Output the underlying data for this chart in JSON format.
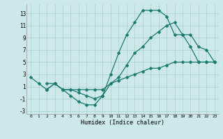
{
  "xlabel": "Humidex (Indice chaleur)",
  "bg_color": "#cce8e8",
  "grid_color": "#aacfcf",
  "line_color": "#1a7a6e",
  "xlim": [
    -0.5,
    23.5
  ],
  "ylim": [
    -3.5,
    14.5
  ],
  "xticks": [
    0,
    1,
    2,
    3,
    4,
    5,
    6,
    7,
    8,
    9,
    10,
    11,
    12,
    13,
    14,
    15,
    16,
    17,
    18,
    19,
    20,
    21,
    22,
    23
  ],
  "yticks": [
    -3,
    -1,
    1,
    3,
    5,
    7,
    9,
    11,
    13
  ],
  "line1_x": [
    0,
    1,
    2,
    3,
    4,
    5,
    6,
    7,
    8,
    9,
    10,
    11,
    12,
    13,
    14,
    15,
    16,
    17,
    18,
    19,
    20,
    21,
    22,
    23
  ],
  "line1_y": [
    2.5,
    1.5,
    0.5,
    1.5,
    0.5,
    -0.5,
    -1.5,
    -2.0,
    -2.0,
    -0.5,
    3.0,
    6.5,
    9.5,
    11.5,
    13.5,
    13.5,
    13.5,
    12.5,
    9.5,
    9.5,
    7.5,
    5.0,
    5.0,
    5.0
  ],
  "line2_x": [
    2,
    3,
    4,
    5,
    6,
    7,
    8,
    9,
    10,
    11,
    12,
    13,
    14,
    15,
    16,
    17,
    18,
    19,
    20,
    21,
    22,
    23
  ],
  "line2_y": [
    1.5,
    1.5,
    0.5,
    0.5,
    0.0,
    -0.5,
    -1.0,
    -0.5,
    1.5,
    2.5,
    4.5,
    6.5,
    7.5,
    9.0,
    10.0,
    11.0,
    11.5,
    9.5,
    9.5,
    7.5,
    7.0,
    5.0
  ],
  "line3_x": [
    2,
    3,
    4,
    5,
    6,
    7,
    8,
    9,
    10,
    11,
    12,
    13,
    14,
    15,
    16,
    17,
    18,
    19,
    20,
    21,
    22,
    23
  ],
  "line3_y": [
    0.5,
    1.5,
    0.5,
    0.5,
    0.5,
    0.5,
    0.5,
    0.5,
    1.5,
    2.0,
    2.5,
    3.0,
    3.5,
    4.0,
    4.0,
    4.5,
    5.0,
    5.0,
    5.0,
    5.0,
    5.0,
    5.0
  ]
}
